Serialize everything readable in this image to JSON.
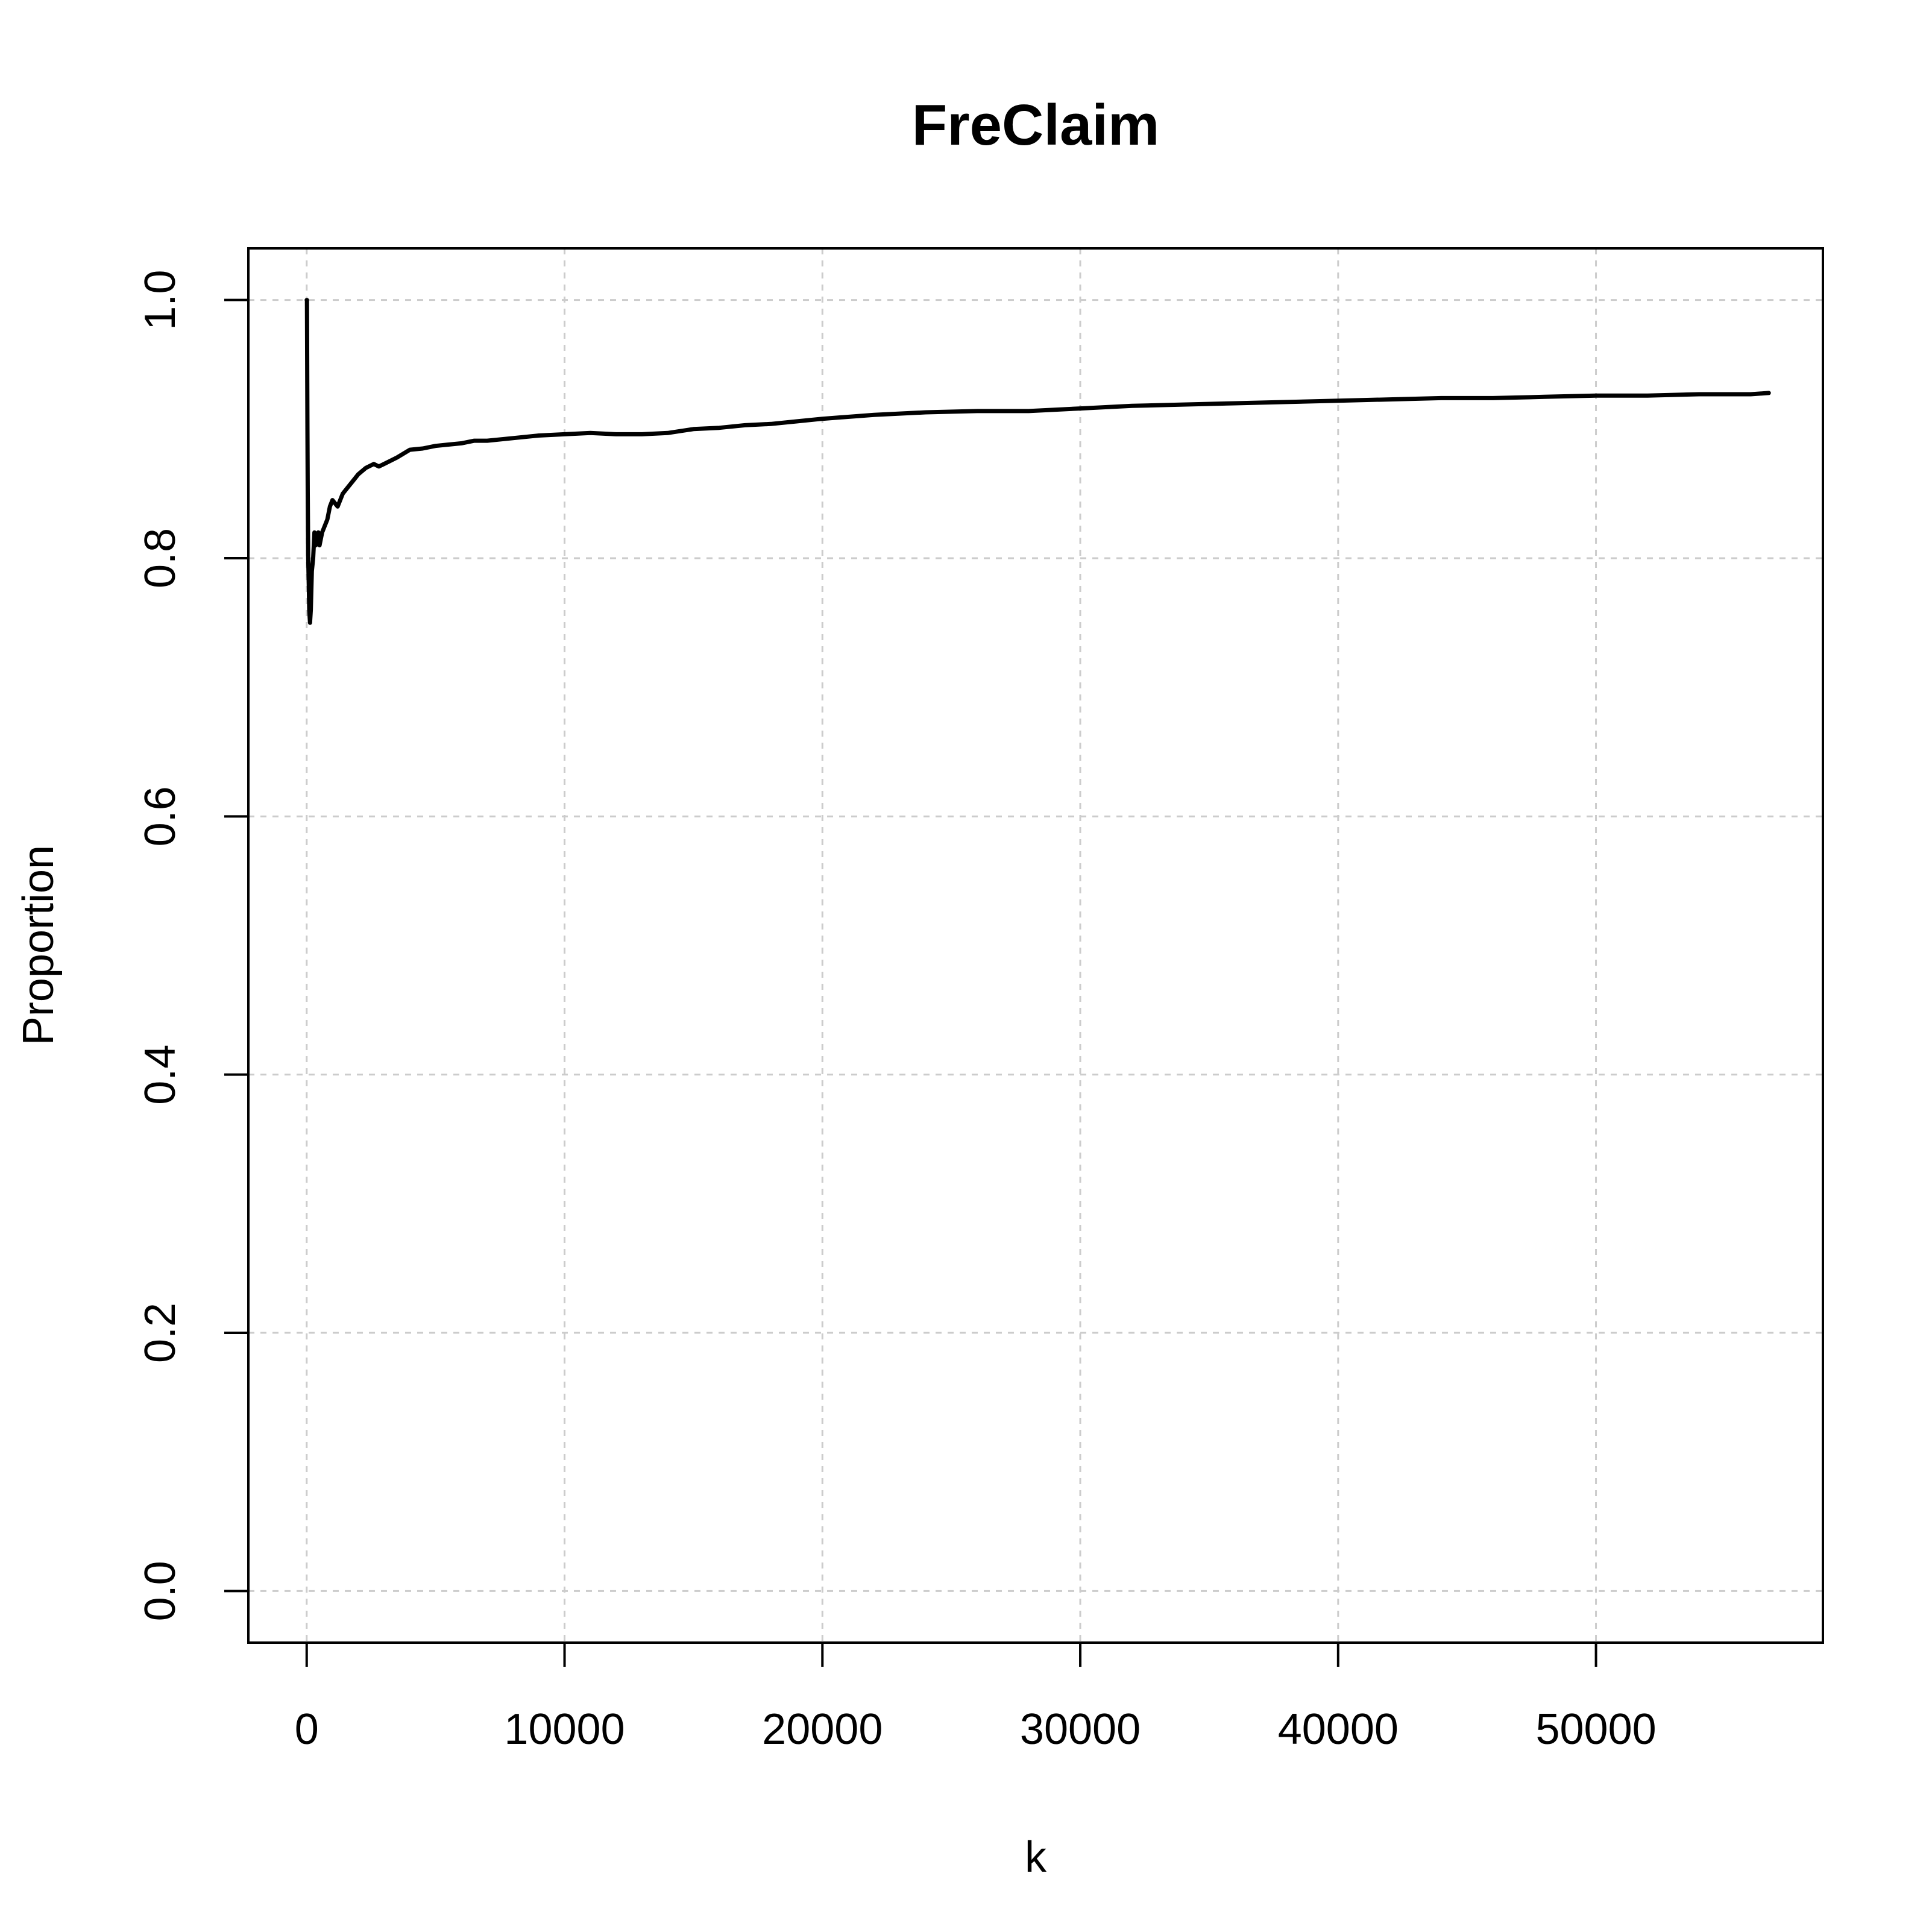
{
  "chart_data": {
    "type": "line",
    "title": "FreClaim",
    "xlabel": "k",
    "ylabel": "Proportion",
    "xlim": [
      -2262,
      58800
    ],
    "ylim": [
      -0.04,
      1.04
    ],
    "x_ticks": [
      0,
      10000,
      20000,
      30000,
      40000,
      50000
    ],
    "x_tick_labels": [
      "0",
      "10000",
      "20000",
      "30000",
      "40000",
      "50000"
    ],
    "y_ticks": [
      0.0,
      0.2,
      0.4,
      0.6,
      0.8,
      1.0
    ],
    "y_tick_labels": [
      "0.0",
      "0.2",
      "0.4",
      "0.6",
      "0.8",
      "1.0"
    ],
    "grid": true,
    "series": [
      {
        "color": "#000000",
        "line_style": "solid",
        "x": [
          1,
          10,
          20,
          30,
          40,
          60,
          80,
          100,
          130,
          160,
          200,
          250,
          300,
          350,
          400,
          450,
          500,
          600,
          700,
          800,
          900,
          1000,
          1200,
          1400,
          1600,
          1800,
          2000,
          2300,
          2600,
          2800,
          3000,
          3500,
          4000,
          4500,
          5000,
          5500,
          6000,
          6500,
          7000,
          8000,
          9000,
          10000,
          11000,
          12000,
          13000,
          14000,
          15000,
          16000,
          17000,
          18000,
          19000,
          20000,
          22000,
          24000,
          26000,
          28000,
          30000,
          32000,
          34000,
          36000,
          38000,
          40000,
          42000,
          44000,
          46000,
          48000,
          50000,
          52000,
          54000,
          56000,
          56700
        ],
        "y": [
          1.0,
          1.0,
          0.95,
          0.9,
          0.85,
          0.8,
          0.78,
          0.76,
          0.75,
          0.76,
          0.79,
          0.8,
          0.82,
          0.81,
          0.815,
          0.82,
          0.81,
          0.82,
          0.825,
          0.83,
          0.84,
          0.845,
          0.84,
          0.85,
          0.855,
          0.86,
          0.865,
          0.87,
          0.873,
          0.871,
          0.873,
          0.878,
          0.884,
          0.885,
          0.887,
          0.888,
          0.889,
          0.891,
          0.891,
          0.893,
          0.895,
          0.896,
          0.897,
          0.896,
          0.896,
          0.897,
          0.9,
          0.901,
          0.903,
          0.904,
          0.906,
          0.908,
          0.911,
          0.913,
          0.914,
          0.914,
          0.916,
          0.918,
          0.919,
          0.92,
          0.921,
          0.922,
          0.923,
          0.924,
          0.924,
          0.925,
          0.926,
          0.926,
          0.927,
          0.927,
          0.928
        ]
      },
      {
        "color": "#000000",
        "line_style": "dashed",
        "x": [
          1,
          10,
          20,
          30,
          40,
          60,
          80,
          100,
          130,
          160,
          200
        ],
        "y": [
          1.0,
          0.98,
          0.93,
          0.88,
          0.84,
          0.8,
          0.78,
          0.76,
          0.75,
          0.76,
          0.79
        ]
      }
    ]
  }
}
